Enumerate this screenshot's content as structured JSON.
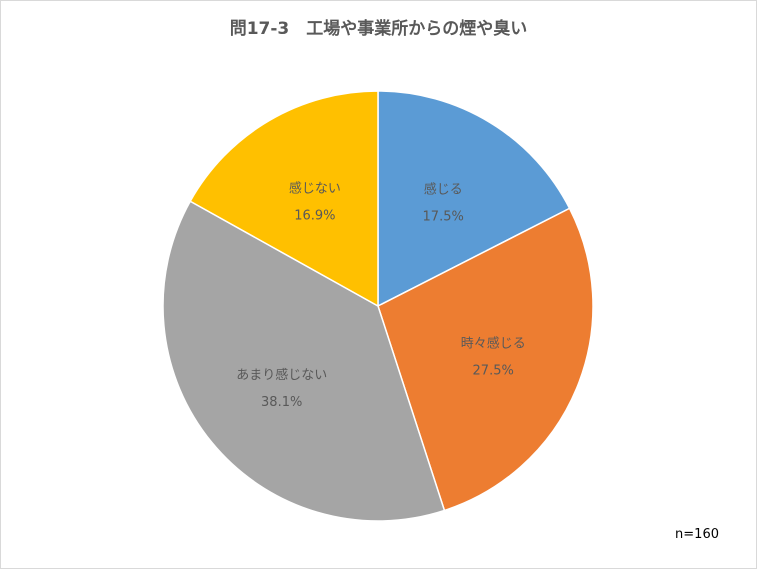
{
  "chart_data": {
    "type": "pie",
    "title": "問17-3　工場や事業所からの煙や臭い",
    "categories": [
      "感じる",
      "時々感じる",
      "あまり感じない",
      "感じない"
    ],
    "values": [
      17.5,
      27.5,
      38.1,
      16.9
    ],
    "value_labels": [
      "17.5%",
      "27.5%",
      "38.1%",
      "16.9%"
    ],
    "colors": [
      "#5b9bd5",
      "#ed7d31",
      "#a5a5a5",
      "#ffc000"
    ],
    "start_angle": "12 o'clock",
    "direction": "clockwise",
    "legend": "none",
    "note": "n=160"
  }
}
